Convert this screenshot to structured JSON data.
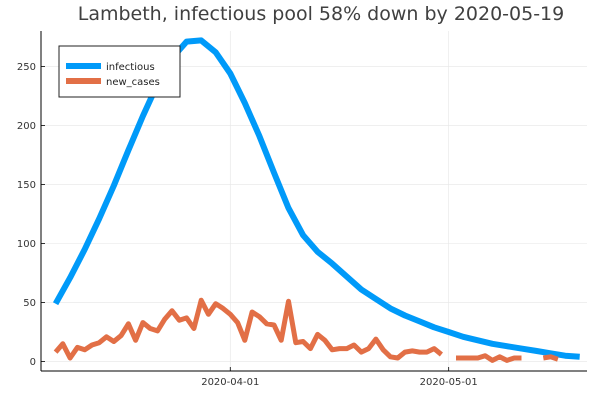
{
  "chart_data": {
    "type": "line",
    "title": "Lambeth, infectious pool 58% down by 2020-05-19",
    "xlabel": "",
    "ylabel": "",
    "x_axis": {
      "type": "date",
      "start": "2020-03-06",
      "end": "2020-05-20",
      "ticks": [
        "2020-04-01",
        "2020-05-01"
      ]
    },
    "y_axis": {
      "range": [
        -8,
        280
      ],
      "ticks": [
        0,
        50,
        100,
        150,
        200,
        250
      ]
    },
    "grid": true,
    "legend": {
      "position": "top-left",
      "entries": [
        "infectious",
        "new_cases"
      ]
    },
    "series": [
      {
        "name": "infectious",
        "color": "#009af9",
        "x": [
          "2020-03-08",
          "2020-03-10",
          "2020-03-12",
          "2020-03-14",
          "2020-03-16",
          "2020-03-18",
          "2020-03-20",
          "2020-03-22",
          "2020-03-24",
          "2020-03-26",
          "2020-03-28",
          "2020-03-30",
          "2020-04-01",
          "2020-04-03",
          "2020-04-05",
          "2020-04-07",
          "2020-04-09",
          "2020-04-11",
          "2020-04-13",
          "2020-04-15",
          "2020-04-17",
          "2020-04-19",
          "2020-04-21",
          "2020-04-23",
          "2020-04-25",
          "2020-04-27",
          "2020-04-29",
          "2020-05-01",
          "2020-05-03",
          "2020-05-05",
          "2020-05-07",
          "2020-05-09",
          "2020-05-11",
          "2020-05-13",
          "2020-05-15",
          "2020-05-17",
          "2020-05-19"
        ],
        "values": [
          49,
          71,
          95,
          121,
          149,
          179,
          208,
          235,
          257,
          271,
          272,
          262,
          244,
          219,
          191,
          160,
          130,
          107,
          93,
          83,
          72,
          61,
          53,
          45,
          39,
          34,
          29,
          25,
          21,
          18,
          15,
          13,
          11,
          9,
          7,
          5,
          4
        ]
      },
      {
        "name": "new_cases",
        "color": "#e26f46",
        "segments": [
          {
            "x": [
              "2020-03-08",
              "2020-03-09",
              "2020-03-10",
              "2020-03-11",
              "2020-03-12",
              "2020-03-13",
              "2020-03-14",
              "2020-03-15",
              "2020-03-16",
              "2020-03-17",
              "2020-03-18",
              "2020-03-19",
              "2020-03-20",
              "2020-03-21",
              "2020-03-22",
              "2020-03-23",
              "2020-03-24",
              "2020-03-25",
              "2020-03-26",
              "2020-03-27",
              "2020-03-28",
              "2020-03-29",
              "2020-03-30",
              "2020-03-31",
              "2020-04-01",
              "2020-04-02",
              "2020-04-03",
              "2020-04-04",
              "2020-04-05",
              "2020-04-06",
              "2020-04-07",
              "2020-04-08",
              "2020-04-09",
              "2020-04-10",
              "2020-04-11",
              "2020-04-12",
              "2020-04-13",
              "2020-04-14",
              "2020-04-15",
              "2020-04-16",
              "2020-04-17",
              "2020-04-18",
              "2020-04-19",
              "2020-04-20",
              "2020-04-21",
              "2020-04-22",
              "2020-04-23",
              "2020-04-24",
              "2020-04-25",
              "2020-04-26",
              "2020-04-27",
              "2020-04-28",
              "2020-04-29",
              "2020-04-30"
            ],
            "values": [
              8,
              15,
              3,
              12,
              10,
              14,
              16,
              21,
              17,
              22,
              32,
              18,
              33,
              28,
              26,
              36,
              43,
              35,
              37,
              28,
              52,
              40,
              49,
              45,
              40,
              33,
              18,
              42,
              38,
              32,
              31,
              18,
              51,
              16,
              17,
              11,
              23,
              18,
              10,
              11,
              11,
              14,
              8,
              11,
              19,
              10,
              4,
              3,
              8,
              9,
              8,
              8,
              11,
              6
            ]
          },
          {
            "x": [
              "2020-05-02",
              "2020-05-03",
              "2020-05-04",
              "2020-05-05",
              "2020-05-06",
              "2020-05-07",
              "2020-05-08",
              "2020-05-09",
              "2020-05-10",
              "2020-05-11"
            ],
            "values": [
              3,
              3,
              3,
              3,
              5,
              1,
              4,
              1,
              3,
              3
            ]
          },
          {
            "x": [
              "2020-05-14",
              "2020-05-15",
              "2020-05-16"
            ],
            "values": [
              3,
              4,
              2
            ]
          }
        ]
      }
    ]
  }
}
